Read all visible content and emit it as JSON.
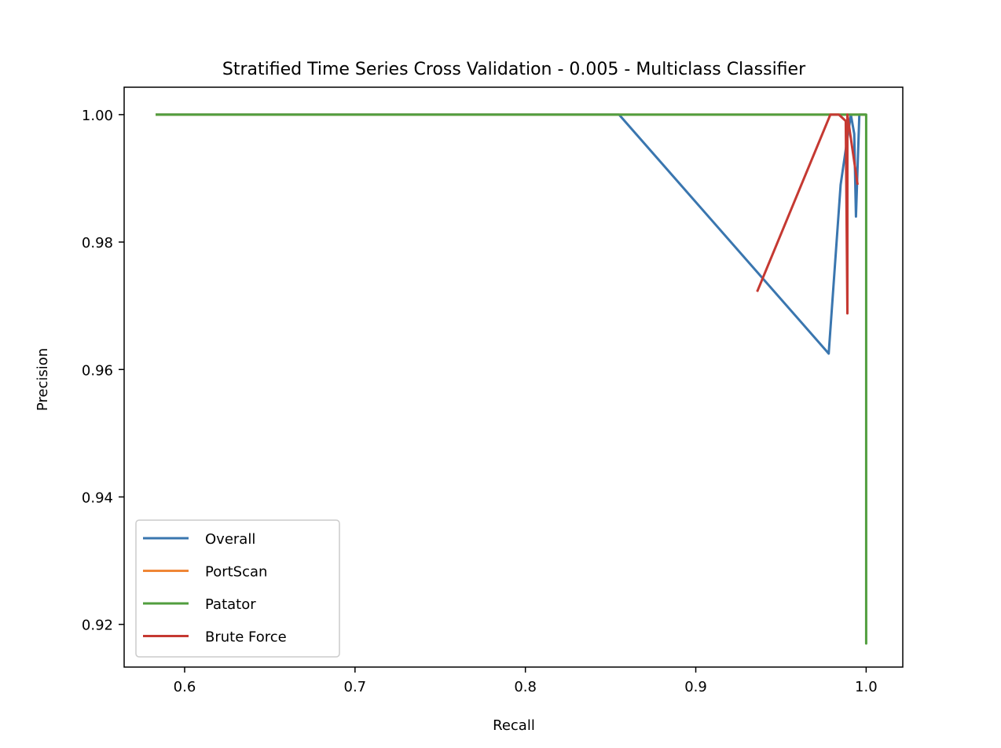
{
  "chart_data": {
    "type": "line",
    "title": "Stratified Time Series Cross Validation - 0.005 - Multiclass Classifier",
    "xlabel": "Recall",
    "ylabel": "Precision",
    "xlim": [
      0.5645,
      1.0215
    ],
    "ylim": [
      0.9133,
      1.0043
    ],
    "xticks": [
      0.6,
      0.7,
      0.8,
      0.9,
      1.0
    ],
    "xtick_labels": [
      "0.6",
      "0.7",
      "0.8",
      "0.9",
      "1.0"
    ],
    "yticks": [
      0.92,
      0.94,
      0.96,
      0.98,
      1.0
    ],
    "ytick_labels": [
      "0.92",
      "0.94",
      "0.96",
      "0.98",
      "1.00"
    ],
    "grid": false,
    "legend_position": "lower-left",
    "series": [
      {
        "name": "Overall",
        "color": "#3a76af",
        "x": [
          0.583,
          0.855,
          0.978,
          0.985,
          0.991,
          0.993,
          0.994,
          0.996,
          1.0
        ],
        "y": [
          1.0,
          1.0,
          0.9625,
          0.989,
          1.0,
          0.997,
          0.984,
          1.0,
          1.0
        ]
      },
      {
        "name": "PortScan",
        "color": "#ef8636",
        "x": [
          0.583,
          1.0
        ],
        "y": [
          1.0,
          1.0
        ]
      },
      {
        "name": "Patator",
        "color": "#519e3e",
        "x": [
          0.583,
          0.998,
          1.0,
          1.0,
          1.0,
          1.0
        ],
        "y": [
          1.0,
          1.0,
          1.0,
          0.917,
          1.0,
          1.0
        ]
      },
      {
        "name": "Brute Force",
        "color": "#c53932",
        "x": [
          0.936,
          0.979,
          0.984,
          0.988,
          0.989,
          0.989,
          0.995
        ],
        "y": [
          0.9722,
          1.0,
          1.0,
          0.999,
          0.9688,
          1.0,
          0.989
        ]
      }
    ]
  }
}
